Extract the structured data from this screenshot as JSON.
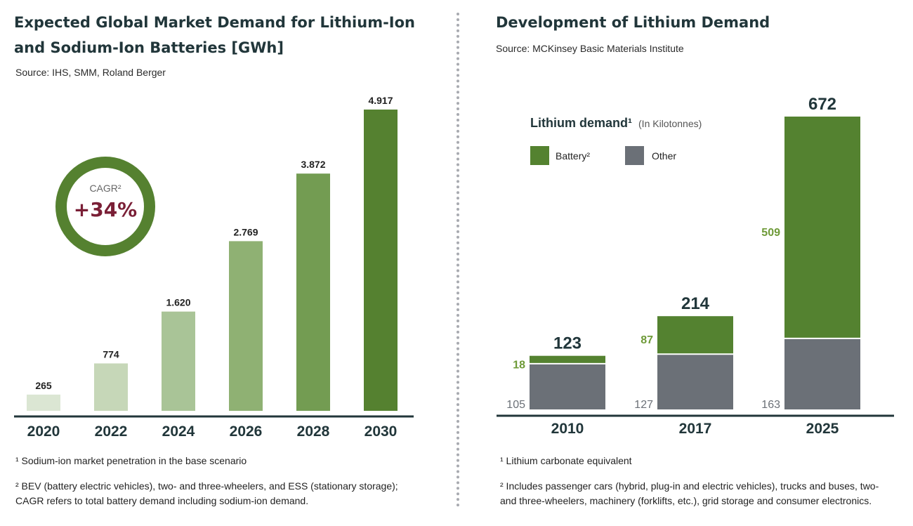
{
  "left": {
    "title": "Expected Global Market Demand for Lithium-Ion and Sodium-Ion Batteries [GWh]",
    "source": "Source: IHS, SMM, Roland Berger",
    "cagr_label": "CAGR²",
    "cagr_value": "+34%",
    "footnote_1": "¹ Sodium-ion market penetration in the base scenario",
    "footnote_2": "² BEV (battery electric vehicles), two- and three-wheelers, and ESS (stationary storage); CAGR refers to total battery demand including sodium-ion demand."
  },
  "right": {
    "title": "Development of Lithium Demand",
    "source": "Source: MCKinsey Basic Materials Institute",
    "legend_title": "Lithium demand¹",
    "legend_unit": "(In Kilotonnes)",
    "footnote_1": "¹ Lithium carbonate equivalent",
    "footnote_2": "² Includes passenger cars (hybrid, plug-in and electric vehicles), trucks and buses, two- and three-wheelers, machinery (forklifts, etc.), grid storage and consumer electronics."
  },
  "chart_data": [
    {
      "type": "bar",
      "title": "Expected Global Market Demand for Lithium-Ion and Sodium-Ion Batteries [GWh]",
      "categories": [
        "2020",
        "2022",
        "2024",
        "2026",
        "2028",
        "2030"
      ],
      "values": [
        265,
        774,
        1620,
        2769,
        3872,
        4917
      ],
      "value_labels": [
        "265",
        "774",
        "1.620",
        "2.769",
        "3.872",
        "4.917"
      ],
      "colors": [
        "#dbe6d3",
        "#c6d7b8",
        "#a9c497",
        "#8fb173",
        "#739c52",
        "#558130"
      ],
      "ylim": [
        0,
        4917
      ],
      "xlabel": "",
      "ylabel": "GWh",
      "grid": false
    },
    {
      "type": "bar",
      "stacked": true,
      "title": "Development of Lithium Demand",
      "categories": [
        "2010",
        "2017",
        "2025"
      ],
      "series": [
        {
          "name": "Other",
          "values": [
            105,
            127,
            163
          ],
          "color": "#6b7077"
        },
        {
          "name": "Battery²",
          "values": [
            18,
            87,
            509
          ],
          "color": "#548230"
        }
      ],
      "totals": [
        123,
        214,
        672
      ],
      "ylim": [
        0,
        672
      ],
      "ylabel": "Kilotonnes",
      "grid": false,
      "legend": "top-left"
    }
  ]
}
